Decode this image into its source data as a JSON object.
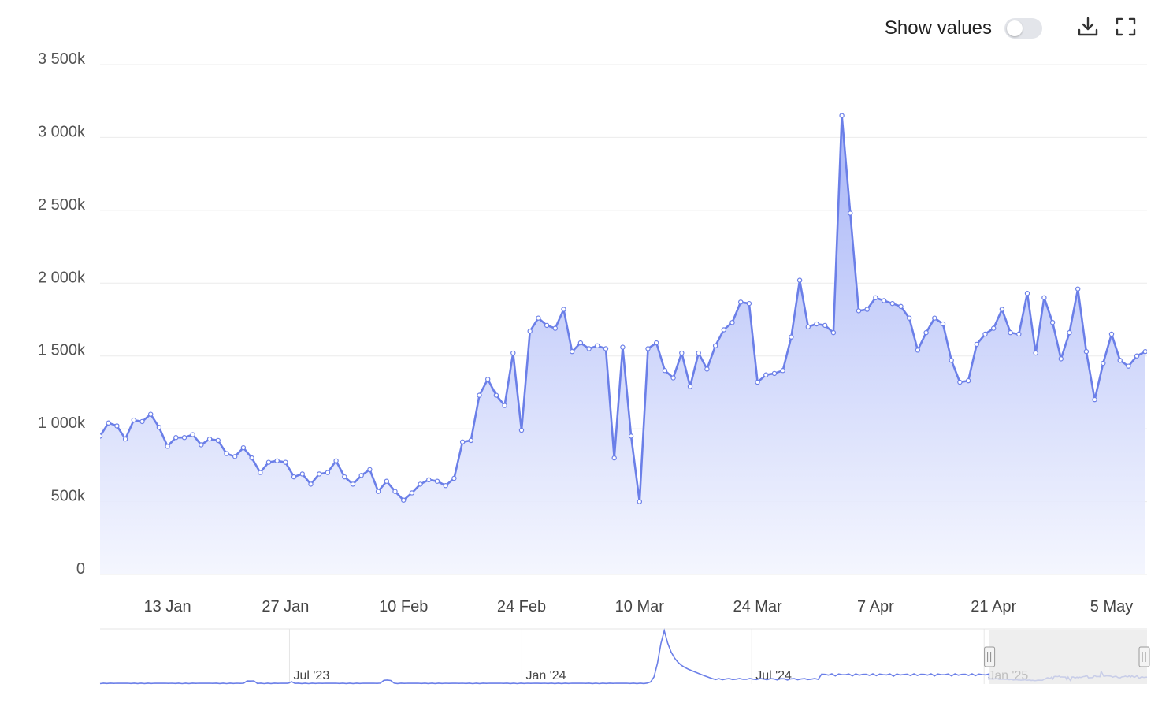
{
  "toolbar": {
    "show_values_label": "Show values",
    "show_values_on": false,
    "download_icon": "download-icon",
    "fullscreen_icon": "fullscreen-icon"
  },
  "colors": {
    "line": "#6B7FE8",
    "fill_top": "#a3b1f7",
    "fill_bottom": "#f3f5fe",
    "grid": "#ececec",
    "navigator_mask": "#e8e8e8"
  },
  "chart_data": {
    "type": "area",
    "xlabel": "",
    "ylabel": "",
    "ylim": [
      0,
      3500000
    ],
    "y_ticks": [
      {
        "value": 0,
        "label": "0"
      },
      {
        "value": 500000,
        "label": "500k"
      },
      {
        "value": 1000000,
        "label": "1 000k"
      },
      {
        "value": 1500000,
        "label": "1 500k"
      },
      {
        "value": 2000000,
        "label": "2 000k"
      },
      {
        "value": 2500000,
        "label": "2 500k"
      },
      {
        "value": 3000000,
        "label": "3 000k"
      },
      {
        "value": 3500000,
        "label": "3 500k"
      }
    ],
    "x_start": "2025-01-05",
    "x_ticks": [
      {
        "date": "2025-01-13",
        "label": "13 Jan"
      },
      {
        "date": "2025-01-27",
        "label": "27 Jan"
      },
      {
        "date": "2025-02-10",
        "label": "10 Feb"
      },
      {
        "date": "2025-02-24",
        "label": "24 Feb"
      },
      {
        "date": "2025-03-10",
        "label": "10 Mar"
      },
      {
        "date": "2025-03-24",
        "label": "24 Mar"
      },
      {
        "date": "2025-04-07",
        "label": "7 Apr"
      },
      {
        "date": "2025-04-21",
        "label": "21 Apr"
      },
      {
        "date": "2025-05-05",
        "label": "5 May"
      }
    ],
    "grid": true,
    "legend": "none",
    "values": [
      950000,
      1040000,
      1020000,
      930000,
      1060000,
      1050000,
      1100000,
      1010000,
      880000,
      940000,
      940000,
      960000,
      890000,
      930000,
      920000,
      830000,
      810000,
      870000,
      800000,
      700000,
      770000,
      780000,
      770000,
      670000,
      690000,
      620000,
      690000,
      700000,
      780000,
      670000,
      620000,
      680000,
      720000,
      570000,
      640000,
      570000,
      510000,
      560000,
      620000,
      650000,
      640000,
      610000,
      660000,
      910000,
      920000,
      1230000,
      1340000,
      1230000,
      1160000,
      1520000,
      990000,
      1670000,
      1760000,
      1710000,
      1690000,
      1820000,
      1530000,
      1590000,
      1550000,
      1570000,
      1550000,
      800000,
      1560000,
      950000,
      500000,
      1550000,
      1590000,
      1400000,
      1350000,
      1520000,
      1290000,
      1520000,
      1410000,
      1570000,
      1680000,
      1730000,
      1870000,
      1860000,
      1320000,
      1370000,
      1380000,
      1400000,
      1630000,
      2020000,
      1700000,
      1720000,
      1710000,
      1660000,
      3150000,
      2480000,
      1810000,
      1820000,
      1900000,
      1880000,
      1860000,
      1840000,
      1760000,
      1540000,
      1660000,
      1760000,
      1720000,
      1470000,
      1320000,
      1330000,
      1580000,
      1650000,
      1690000,
      1820000,
      1660000,
      1650000,
      1930000,
      1520000,
      1900000,
      1730000,
      1480000,
      1660000,
      1960000,
      1530000,
      1200000,
      1450000,
      1650000,
      1470000,
      1430000,
      1500000,
      1530000
    ],
    "navigator": {
      "labels": [
        "Jul '23",
        "Jan '24",
        "Jul '24",
        "Jan '25"
      ],
      "label_dates": [
        "2023-07-01",
        "2024-01-01",
        "2024-07-01",
        "2025-01-01"
      ],
      "start": "2023-02-01",
      "end": "2025-05-10",
      "selection_start": "2025-01-05",
      "selection_end": "2025-05-10"
    }
  }
}
